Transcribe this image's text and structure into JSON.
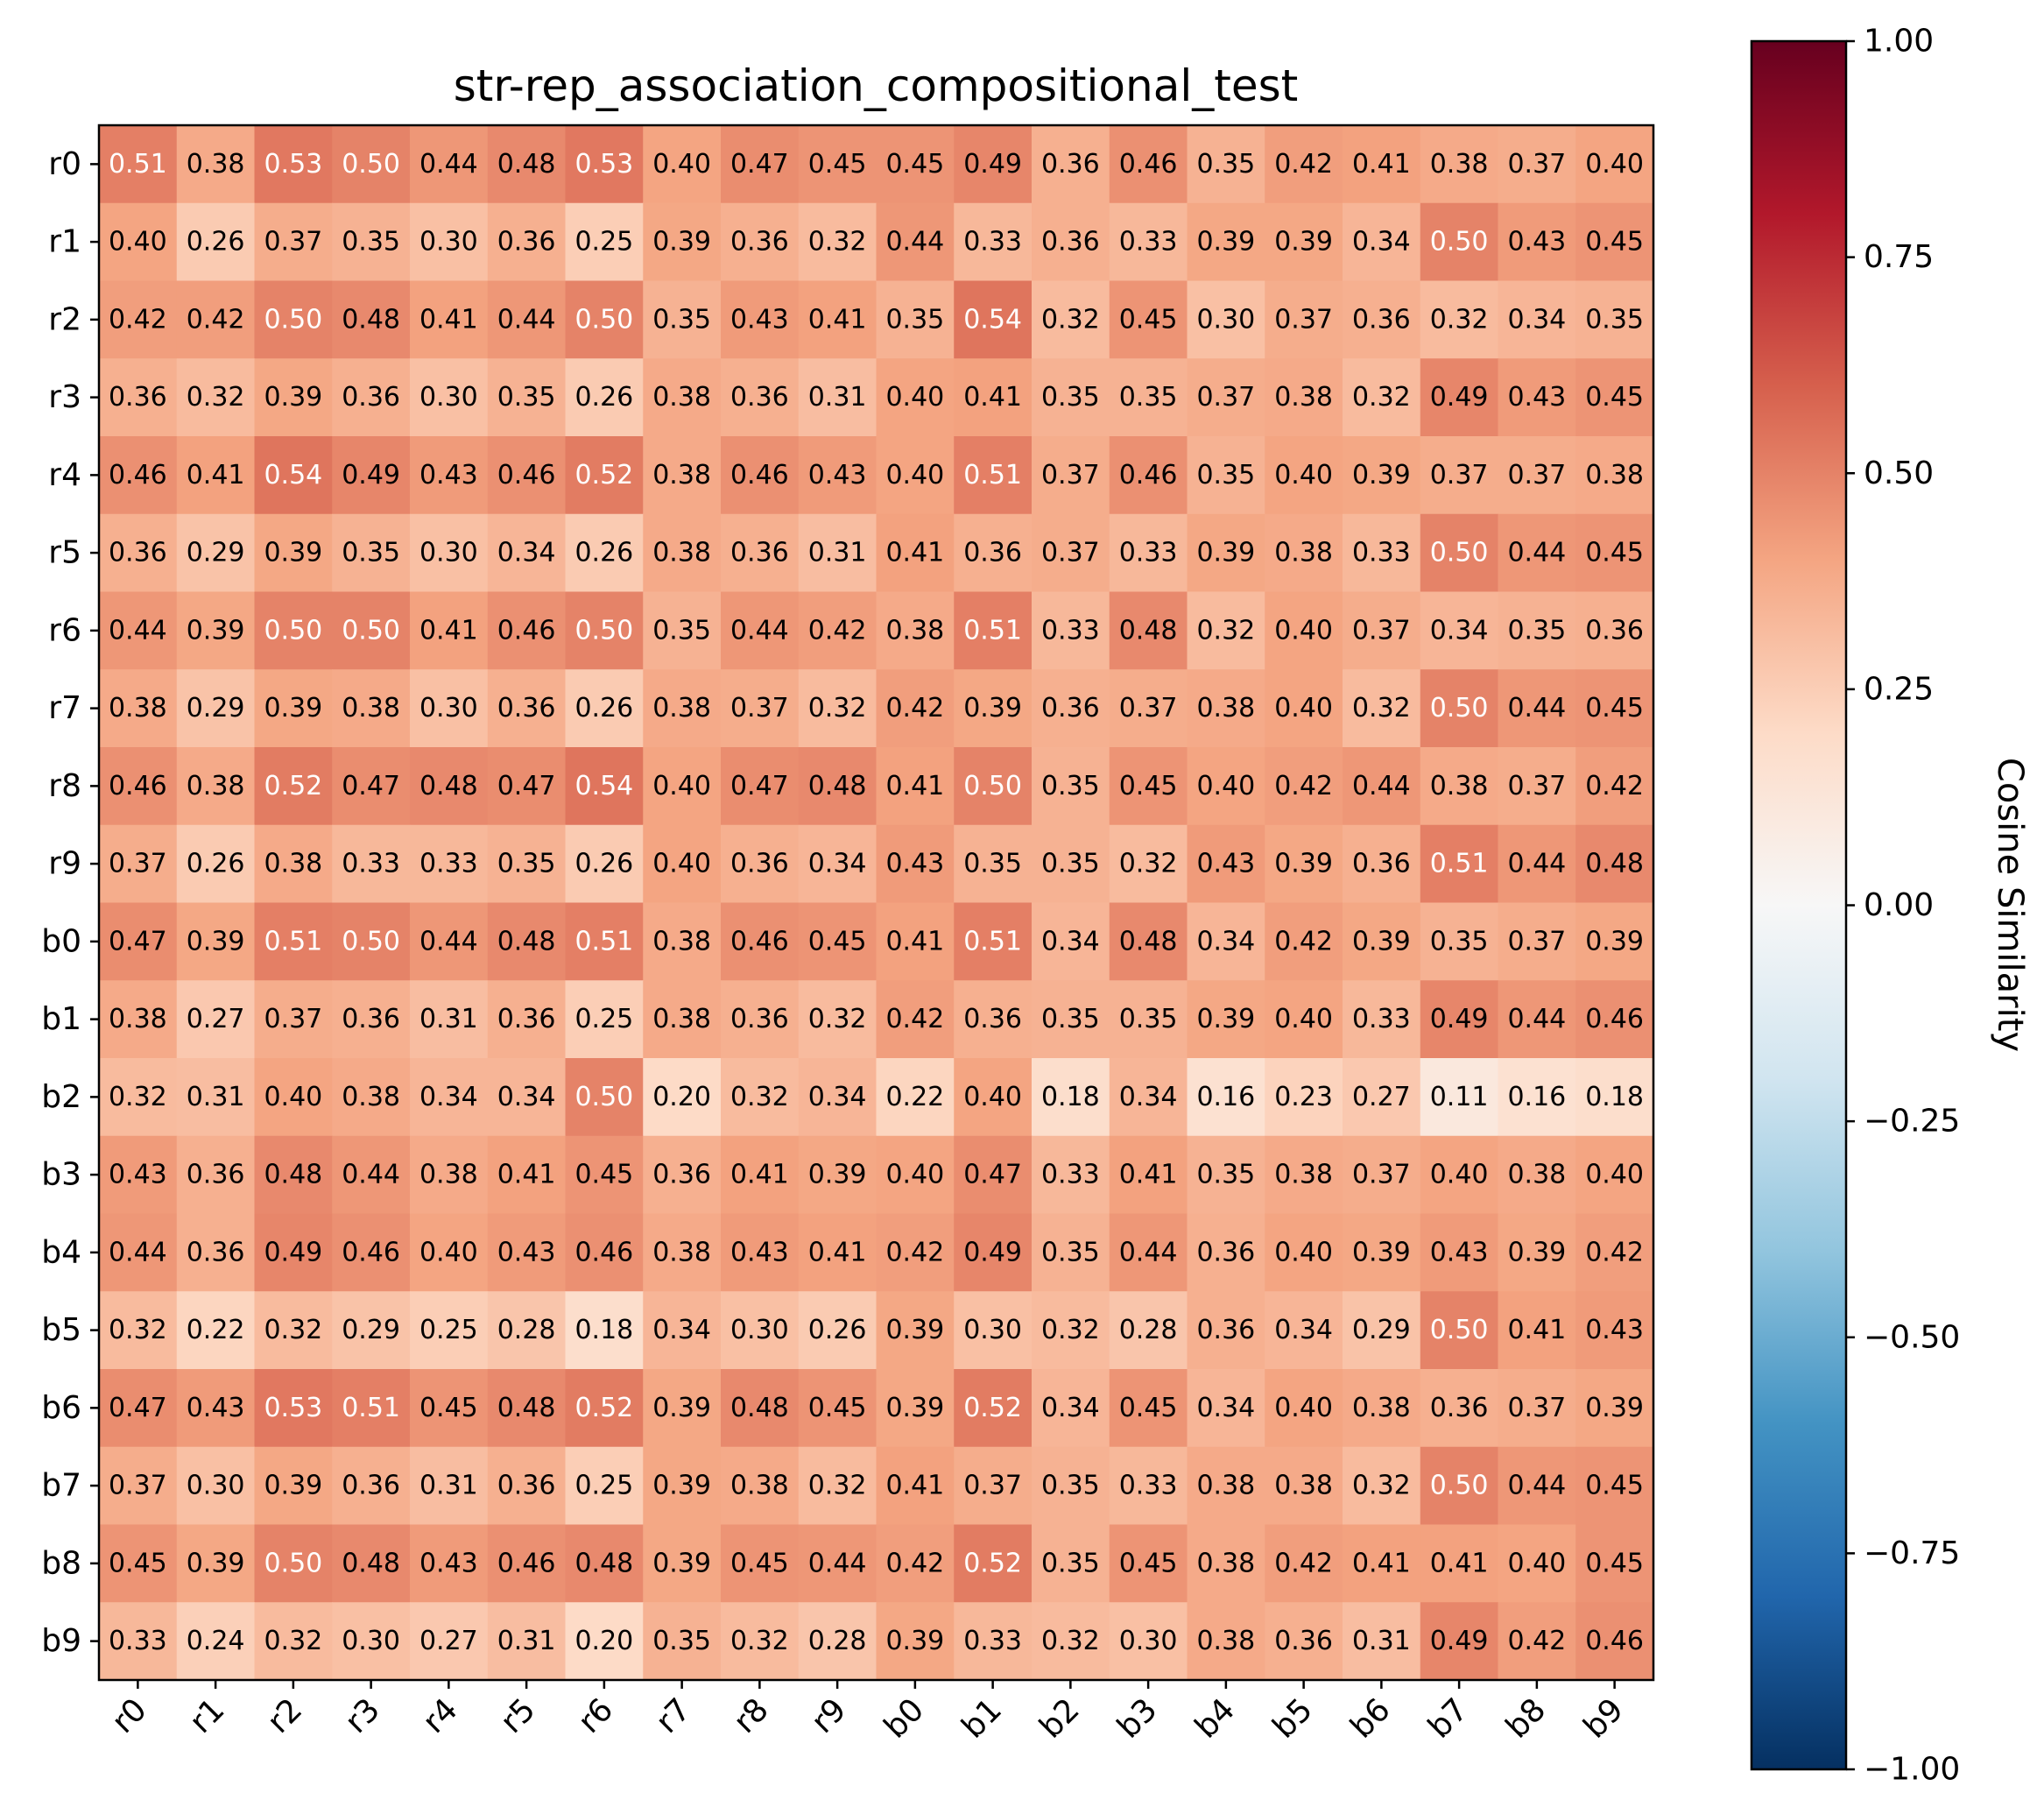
{
  "chart_data": {
    "type": "heatmap",
    "title": "str-rep_association_compositional_test",
    "xlabel": "",
    "ylabel": "",
    "x_labels": [
      "r0",
      "r1",
      "r2",
      "r3",
      "r4",
      "r5",
      "r6",
      "r7",
      "r8",
      "r9",
      "b0",
      "b1",
      "b2",
      "b3",
      "b4",
      "b5",
      "b6",
      "b7",
      "b8",
      "b9"
    ],
    "y_labels": [
      "r0",
      "r1",
      "r2",
      "r3",
      "r4",
      "r5",
      "r6",
      "r7",
      "r8",
      "r9",
      "b0",
      "b1",
      "b2",
      "b3",
      "b4",
      "b5",
      "b6",
      "b7",
      "b8",
      "b9"
    ],
    "values": [
      [
        0.51,
        0.38,
        0.53,
        0.5,
        0.44,
        0.48,
        0.53,
        0.4,
        0.47,
        0.45,
        0.45,
        0.49,
        0.36,
        0.46,
        0.35,
        0.42,
        0.41,
        0.38,
        0.37,
        0.4
      ],
      [
        0.4,
        0.26,
        0.37,
        0.35,
        0.3,
        0.36,
        0.25,
        0.39,
        0.36,
        0.32,
        0.44,
        0.33,
        0.36,
        0.33,
        0.39,
        0.39,
        0.34,
        0.5,
        0.43,
        0.45
      ],
      [
        0.42,
        0.42,
        0.5,
        0.48,
        0.41,
        0.44,
        0.5,
        0.35,
        0.43,
        0.41,
        0.35,
        0.54,
        0.32,
        0.45,
        0.3,
        0.37,
        0.36,
        0.32,
        0.34,
        0.35
      ],
      [
        0.36,
        0.32,
        0.39,
        0.36,
        0.3,
        0.35,
        0.26,
        0.38,
        0.36,
        0.31,
        0.4,
        0.41,
        0.35,
        0.35,
        0.37,
        0.38,
        0.32,
        0.49,
        0.43,
        0.45
      ],
      [
        0.46,
        0.41,
        0.54,
        0.49,
        0.43,
        0.46,
        0.52,
        0.38,
        0.46,
        0.43,
        0.4,
        0.51,
        0.37,
        0.46,
        0.35,
        0.4,
        0.39,
        0.37,
        0.37,
        0.38
      ],
      [
        0.36,
        0.29,
        0.39,
        0.35,
        0.3,
        0.34,
        0.26,
        0.38,
        0.36,
        0.31,
        0.41,
        0.36,
        0.37,
        0.33,
        0.39,
        0.38,
        0.33,
        0.5,
        0.44,
        0.45
      ],
      [
        0.44,
        0.39,
        0.5,
        0.5,
        0.41,
        0.46,
        0.5,
        0.35,
        0.44,
        0.42,
        0.38,
        0.51,
        0.33,
        0.48,
        0.32,
        0.4,
        0.37,
        0.34,
        0.35,
        0.36
      ],
      [
        0.38,
        0.29,
        0.39,
        0.38,
        0.3,
        0.36,
        0.26,
        0.38,
        0.37,
        0.32,
        0.42,
        0.39,
        0.36,
        0.37,
        0.38,
        0.4,
        0.32,
        0.5,
        0.44,
        0.45
      ],
      [
        0.46,
        0.38,
        0.52,
        0.47,
        0.48,
        0.47,
        0.54,
        0.4,
        0.47,
        0.48,
        0.41,
        0.5,
        0.35,
        0.45,
        0.4,
        0.42,
        0.44,
        0.38,
        0.37,
        0.42
      ],
      [
        0.37,
        0.26,
        0.38,
        0.33,
        0.33,
        0.35,
        0.26,
        0.4,
        0.36,
        0.34,
        0.43,
        0.35,
        0.35,
        0.32,
        0.43,
        0.39,
        0.36,
        0.51,
        0.44,
        0.48
      ],
      [
        0.47,
        0.39,
        0.51,
        0.5,
        0.44,
        0.48,
        0.51,
        0.38,
        0.46,
        0.45,
        0.41,
        0.51,
        0.34,
        0.48,
        0.34,
        0.42,
        0.39,
        0.35,
        0.37,
        0.39
      ],
      [
        0.38,
        0.27,
        0.37,
        0.36,
        0.31,
        0.36,
        0.25,
        0.38,
        0.36,
        0.32,
        0.42,
        0.36,
        0.35,
        0.35,
        0.39,
        0.4,
        0.33,
        0.49,
        0.44,
        0.46
      ],
      [
        0.32,
        0.31,
        0.4,
        0.38,
        0.34,
        0.34,
        0.5,
        0.2,
        0.32,
        0.34,
        0.22,
        0.4,
        0.18,
        0.34,
        0.16,
        0.23,
        0.27,
        0.11,
        0.16,
        0.18
      ],
      [
        0.43,
        0.36,
        0.48,
        0.44,
        0.38,
        0.41,
        0.45,
        0.36,
        0.41,
        0.39,
        0.4,
        0.47,
        0.33,
        0.41,
        0.35,
        0.38,
        0.37,
        0.4,
        0.38,
        0.4
      ],
      [
        0.44,
        0.36,
        0.49,
        0.46,
        0.4,
        0.43,
        0.46,
        0.38,
        0.43,
        0.41,
        0.42,
        0.49,
        0.35,
        0.44,
        0.36,
        0.4,
        0.39,
        0.43,
        0.39,
        0.42
      ],
      [
        0.32,
        0.22,
        0.32,
        0.29,
        0.25,
        0.28,
        0.18,
        0.34,
        0.3,
        0.26,
        0.39,
        0.3,
        0.32,
        0.28,
        0.36,
        0.34,
        0.29,
        0.5,
        0.41,
        0.43
      ],
      [
        0.47,
        0.43,
        0.53,
        0.51,
        0.45,
        0.48,
        0.52,
        0.39,
        0.48,
        0.45,
        0.39,
        0.52,
        0.34,
        0.45,
        0.34,
        0.4,
        0.38,
        0.36,
        0.37,
        0.39
      ],
      [
        0.37,
        0.3,
        0.39,
        0.36,
        0.31,
        0.36,
        0.25,
        0.39,
        0.38,
        0.32,
        0.41,
        0.37,
        0.35,
        0.33,
        0.38,
        0.38,
        0.32,
        0.5,
        0.44,
        0.45
      ],
      [
        0.45,
        0.39,
        0.5,
        0.48,
        0.43,
        0.46,
        0.48,
        0.39,
        0.45,
        0.44,
        0.42,
        0.52,
        0.35,
        0.45,
        0.38,
        0.42,
        0.41,
        0.41,
        0.4,
        0.45
      ],
      [
        0.33,
        0.24,
        0.32,
        0.3,
        0.27,
        0.31,
        0.2,
        0.35,
        0.32,
        0.28,
        0.39,
        0.33,
        0.32,
        0.3,
        0.38,
        0.36,
        0.31,
        0.49,
        0.42,
        0.46
      ]
    ],
    "value_range": [
      -1.0,
      1.0
    ],
    "colormap": "RdBu_r",
    "colorbar": {
      "label": "Cosine Similarity",
      "ticks": [
        1.0,
        0.75,
        0.5,
        0.25,
        0.0,
        -0.25,
        -0.5,
        -0.75,
        -1.0
      ],
      "tick_labels": [
        "1.00",
        "0.75",
        "0.50",
        "0.25",
        "0.00",
        "−0.25",
        "−0.50",
        "−0.75",
        "−1.00"
      ]
    },
    "show_cell_values": true,
    "grid": false
  }
}
